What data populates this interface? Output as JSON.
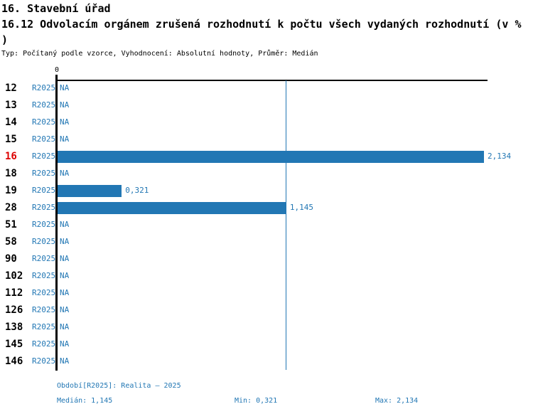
{
  "header": {
    "title": "16. Stavební úřad",
    "subtitle": "16.12 Odvolacím orgánem zrušená rozhodnutí k počtu všech vydaných rozhodnutí (v % )",
    "meta": "Typ: Počítaný podle vzorce, Vyhodnocení: Absolutní hodnoty, Průměr: Medián"
  },
  "chart_data": {
    "type": "bar",
    "orientation": "horizontal",
    "title": "16.12 Odvolacím orgánem zrušená rozhodnutí k počtu všech vydaných rozhodnutí (v %)",
    "x_axis": {
      "zero_label": "0",
      "min": 0,
      "max": 2.152,
      "grid": false
    },
    "period": "R2025",
    "categories": [
      "12",
      "13",
      "14",
      "15",
      "16",
      "18",
      "19",
      "28",
      "51",
      "58",
      "90",
      "102",
      "112",
      "126",
      "138",
      "145",
      "146"
    ],
    "values": [
      null,
      null,
      null,
      null,
      2.134,
      null,
      0.321,
      1.145,
      null,
      null,
      null,
      null,
      null,
      null,
      null,
      null,
      null
    ],
    "value_labels": [
      "NA",
      "NA",
      "NA",
      "NA",
      "2,134",
      "NA",
      "0,321",
      "1,145",
      "NA",
      "NA",
      "NA",
      "NA",
      "NA",
      "NA",
      "NA",
      "NA",
      "NA"
    ],
    "highlighted_category": "16",
    "median": 1.145,
    "min": 0.321,
    "max": 2.134,
    "median_reference_line": true,
    "colors": {
      "bar": "#2277b4",
      "label_text": "#2277b4",
      "highlight": "#dd0000",
      "axis": "#000000"
    }
  },
  "footer": {
    "period_label": "Období[R2025]: Realita – 2025",
    "median_label": "Medián: 1,145",
    "min_label": "Min: 0,321",
    "max_label": "Max: 2,134"
  }
}
